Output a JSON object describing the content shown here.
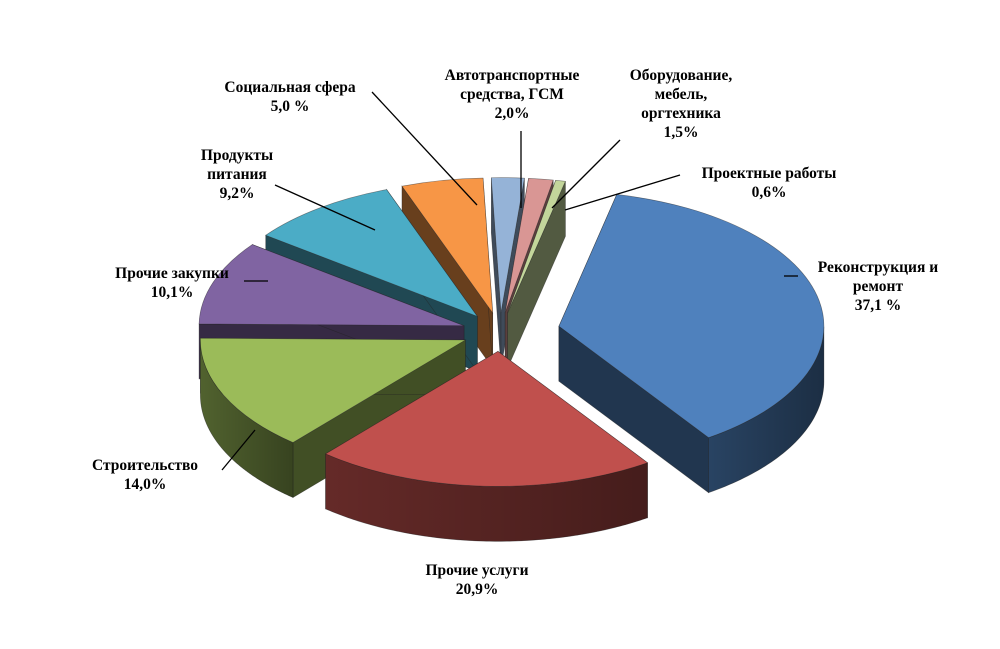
{
  "chart_data": {
    "type": "pie",
    "style": "3d-exploded",
    "title": "",
    "unit": "%",
    "slices": [
      {
        "label": "Реконструкция и ремонт",
        "lines": [
          "Реконструкция и",
          "ремонт"
        ],
        "value_text": "37,1 %",
        "value": 37.1,
        "color": "#4f81bd"
      },
      {
        "label": "Прочие услуги",
        "lines": [
          "Прочие услуги"
        ],
        "value_text": "20,9%",
        "value": 20.9,
        "color": "#c0504d"
      },
      {
        "label": "Строительство",
        "lines": [
          "Строительство"
        ],
        "value_text": "14,0%",
        "value": 14.0,
        "color": "#9bbb59"
      },
      {
        "label": "Прочие закупки",
        "lines": [
          "Прочие закупки"
        ],
        "value_text": "10,1%",
        "value": 10.1,
        "color": "#8064a2"
      },
      {
        "label": "Продукты питания",
        "lines": [
          "Продукты",
          "питания"
        ],
        "value_text": "9,2%",
        "value": 9.2,
        "color": "#4bacc6"
      },
      {
        "label": "Социальная сфера",
        "lines": [
          "Социальная сфера"
        ],
        "value_text": "5,0 %",
        "value": 5.0,
        "color": "#f79646"
      },
      {
        "label": "Автотранспортные средства, ГСМ",
        "lines": [
          "Автотранспортные",
          "средства, ГСМ"
        ],
        "value_text": "2,0%",
        "value": 2.0,
        "color": "#95b3d7"
      },
      {
        "label": "Оборудование, мебель, оргтехника",
        "lines": [
          "Оборудование,",
          "мебель,",
          "оргтехника"
        ],
        "value_text": "1,5%",
        "value": 1.5,
        "color": "#d99694"
      },
      {
        "label": "Проектные работы",
        "lines": [
          "Проектные работы"
        ],
        "value_text": "0,6%",
        "value": 0.6,
        "color": "#c3d69b"
      }
    ],
    "legend": "none"
  }
}
